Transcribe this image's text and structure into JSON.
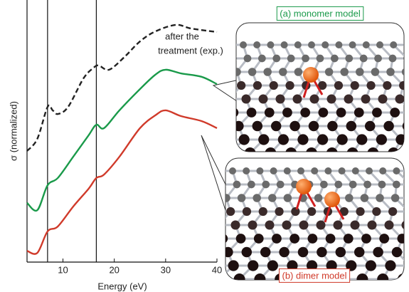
{
  "chart_data": {
    "type": "line",
    "xlabel": "Energy (eV)",
    "ylabel": "σ (normalized)",
    "xlim": [
      3,
      40
    ],
    "xticks": [
      10,
      20,
      30,
      40
    ],
    "ylim": [
      0,
      100
    ],
    "vlines": [
      7,
      16.5
    ],
    "annotation": [
      "after the",
      "treatment (exp.)"
    ],
    "series": [
      {
        "color": "#222222",
        "dashed": true,
        "x": [
          3,
          5,
          7,
          8,
          9,
          11,
          14,
          16,
          17,
          19,
          22,
          25,
          28,
          32,
          35,
          40
        ],
        "values": [
          42.4,
          47,
          59.2,
          57.9,
          56.5,
          59.2,
          70.1,
          74.2,
          75,
          73.4,
          78.3,
          84.2,
          88,
          90.5,
          89.1,
          87.8
        ]
      },
      {
        "color": "#1a9a4a",
        "dashed": false,
        "x": [
          3,
          5,
          7,
          9,
          12,
          15,
          16.5,
          18,
          21,
          25,
          28,
          30,
          33,
          37,
          40
        ],
        "values": [
          22.6,
          19.8,
          29.3,
          32.1,
          40.2,
          48.4,
          52.4,
          51.1,
          57.9,
          66,
          71.5,
          73.4,
          72,
          70.7,
          67.9
        ]
      },
      {
        "color": "#d03a2a",
        "dashed": false,
        "x": [
          3,
          5,
          7,
          9,
          12,
          15,
          16.5,
          18,
          21,
          25,
          28,
          30,
          33,
          37,
          40
        ],
        "values": [
          4.3,
          3.5,
          11.7,
          13.6,
          21.2,
          28,
          32.1,
          33.4,
          40.2,
          51.1,
          56,
          57.9,
          55.7,
          53.8,
          51.1
        ]
      }
    ]
  },
  "panels": [
    {
      "label": "(a) monomer model",
      "color": "#1a9a4a"
    },
    {
      "label": "(b) dimer model",
      "color": "#d03a2a"
    }
  ]
}
